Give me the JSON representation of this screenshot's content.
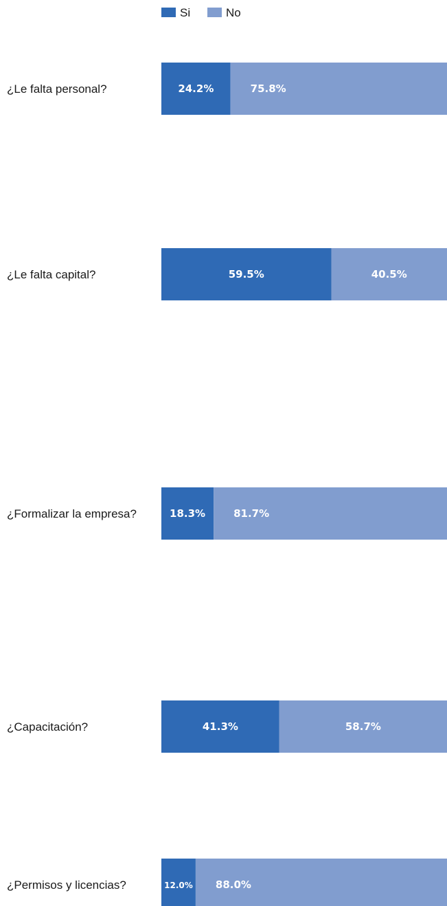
{
  "chart_data": {
    "type": "bar",
    "orientation": "horizontal",
    "stacked": true,
    "normalized": true,
    "categories": [
      "¿Le falta personal?",
      "¿Le falta capital?",
      "¿Formalizar la empresa?",
      "¿Capacitación?",
      "¿Permisos y licencias?"
    ],
    "series": [
      {
        "name": "Si",
        "values": [
          24.2,
          59.5,
          18.3,
          41.3,
          12.0
        ],
        "labels": [
          "24.2%",
          "59.5%",
          "18.3%",
          "41.3%",
          "12.0%"
        ]
      },
      {
        "name": "No",
        "values": [
          75.8,
          40.5,
          81.7,
          58.7,
          88.0
        ],
        "labels": [
          "75.8%",
          "40.5%",
          "81.7%",
          "58.7%",
          "88.0%"
        ]
      }
    ],
    "xlim": [
      0,
      100
    ],
    "title": "",
    "xlabel": "",
    "ylabel": "",
    "grid": false,
    "legend_position": "top",
    "colors": {
      "Si": "#2f6ab5",
      "No": "#819dcf"
    }
  }
}
